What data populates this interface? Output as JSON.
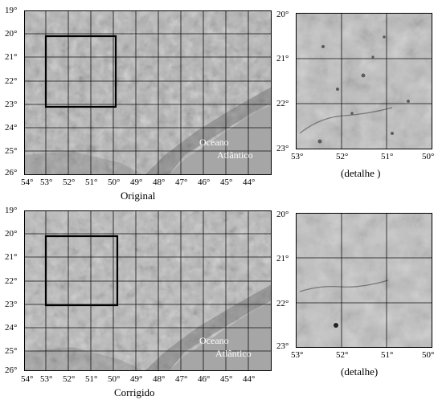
{
  "panels": [
    {
      "caption": "Original",
      "lat_labels": [
        "19°",
        "20°",
        "21°",
        "22°",
        "23°",
        "24°",
        "25°",
        "26°"
      ],
      "lon_labels": [
        "54°",
        "53°",
        "52°",
        "51°",
        "50°",
        "49°",
        "48°",
        "47°",
        "46°",
        "45°",
        "44°"
      ],
      "ocean_line1": "Oceano",
      "ocean_line2": "Atlântico"
    },
    {
      "caption": "Corrigido",
      "lat_labels": [
        "19°",
        "20°",
        "21°",
        "22°",
        "23°",
        "24°",
        "25°",
        "26°"
      ],
      "lon_labels": [
        "54°",
        "53°",
        "52°",
        "51°",
        "50°",
        "49°",
        "48°",
        "47°",
        "46°",
        "45°",
        "44°"
      ],
      "ocean_line1": "Oceano",
      "ocean_line2": "Atlântico"
    }
  ],
  "details": [
    {
      "caption": "(detalhe )",
      "lat_labels": [
        "20°",
        "21°",
        "22°",
        "23°"
      ],
      "lon_labels": [
        "53°",
        "52°",
        "51°",
        "50°"
      ]
    },
    {
      "caption": "(detalhe)",
      "lat_labels": [
        "20°",
        "21°",
        "22°",
        "23°"
      ],
      "lon_labels": [
        "53°",
        "52°",
        "51°",
        "50°"
      ]
    }
  ],
  "colors": {
    "terrain": "#b3b3b3",
    "ocean": "#a6a6a6",
    "grid": "#111111",
    "frame": "#000000"
  }
}
